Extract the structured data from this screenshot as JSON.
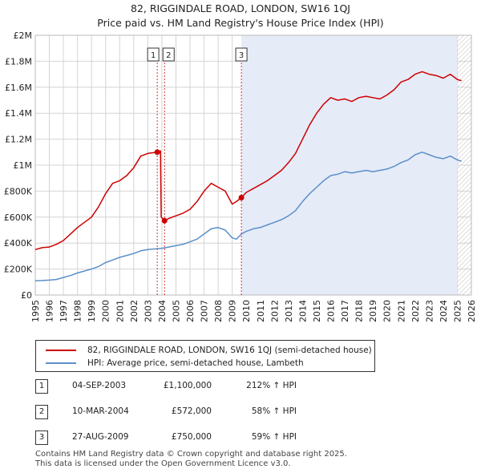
{
  "title_line1": "82, RIGGINDALE ROAD, LONDON, SW16 1QJ",
  "title_line2": "Price paid vs. HM Land Registry's House Price Index (HPI)",
  "colors": {
    "price": "#cc0000",
    "hpi": "#5b8fc9",
    "shade": "#e6ebf8",
    "grid": "#d4d4d4",
    "marker_line": "#cc0000"
  },
  "chart_data": {
    "type": "line",
    "x_range": [
      1995,
      2026
    ],
    "ylim": [
      0,
      2000000
    ],
    "y_ticks": [
      {
        "value": 0,
        "label": "£0"
      },
      {
        "value": 200000,
        "label": "£200K"
      },
      {
        "value": 400000,
        "label": "£400K"
      },
      {
        "value": 600000,
        "label": "£600K"
      },
      {
        "value": 800000,
        "label": "£800K"
      },
      {
        "value": 1000000,
        "label": "£1M"
      },
      {
        "value": 1200000,
        "label": "£1.2M"
      },
      {
        "value": 1400000,
        "label": "£1.4M"
      },
      {
        "value": 1600000,
        "label": "£1.6M"
      },
      {
        "value": 1800000,
        "label": "£1.8M"
      },
      {
        "value": 2000000,
        "label": "£2M"
      }
    ],
    "x_ticks": [
      "1995",
      "1996",
      "1997",
      "1998",
      "1999",
      "2000",
      "2001",
      "2002",
      "2003",
      "2004",
      "2005",
      "2006",
      "2007",
      "2008",
      "2009",
      "2010",
      "2011",
      "2012",
      "2013",
      "2014",
      "2015",
      "2016",
      "2017",
      "2018",
      "2019",
      "2020",
      "2021",
      "2022",
      "2023",
      "2024",
      "2025",
      "2026"
    ],
    "shaded_from": 2009.65,
    "hatched_from": 2025.0,
    "series": [
      {
        "name": "82, RIGGINDALE ROAD, LONDON, SW16 1QJ (semi-detached house)",
        "color": "#cc0000",
        "points": [
          [
            1995,
            350000
          ],
          [
            1995.5,
            365000
          ],
          [
            1996,
            370000
          ],
          [
            1996.5,
            390000
          ],
          [
            1997,
            420000
          ],
          [
            1997.5,
            470000
          ],
          [
            1998,
            520000
          ],
          [
            1998.5,
            560000
          ],
          [
            1999,
            600000
          ],
          [
            1999.5,
            680000
          ],
          [
            2000,
            780000
          ],
          [
            2000.5,
            860000
          ],
          [
            2001,
            880000
          ],
          [
            2001.5,
            920000
          ],
          [
            2002,
            980000
          ],
          [
            2002.5,
            1070000
          ],
          [
            2003,
            1090000
          ],
          [
            2003.67,
            1100000
          ],
          [
            2003.9,
            1110000
          ],
          [
            2003.95,
            600000
          ],
          [
            2004.19,
            572000
          ],
          [
            2004.5,
            590000
          ],
          [
            2005,
            610000
          ],
          [
            2005.5,
            630000
          ],
          [
            2006,
            660000
          ],
          [
            2006.5,
            720000
          ],
          [
            2007,
            800000
          ],
          [
            2007.5,
            860000
          ],
          [
            2008,
            830000
          ],
          [
            2008.5,
            800000
          ],
          [
            2009,
            700000
          ],
          [
            2009.3,
            720000
          ],
          [
            2009.65,
            750000
          ],
          [
            2010,
            790000
          ],
          [
            2010.5,
            820000
          ],
          [
            2011,
            850000
          ],
          [
            2011.5,
            880000
          ],
          [
            2012,
            920000
          ],
          [
            2012.5,
            960000
          ],
          [
            2013,
            1020000
          ],
          [
            2013.5,
            1090000
          ],
          [
            2014,
            1200000
          ],
          [
            2014.5,
            1310000
          ],
          [
            2015,
            1400000
          ],
          [
            2015.5,
            1470000
          ],
          [
            2016,
            1520000
          ],
          [
            2016.5,
            1500000
          ],
          [
            2017,
            1510000
          ],
          [
            2017.5,
            1490000
          ],
          [
            2018,
            1520000
          ],
          [
            2018.5,
            1530000
          ],
          [
            2019,
            1520000
          ],
          [
            2019.5,
            1510000
          ],
          [
            2020,
            1540000
          ],
          [
            2020.5,
            1580000
          ],
          [
            2021,
            1640000
          ],
          [
            2021.5,
            1660000
          ],
          [
            2022,
            1700000
          ],
          [
            2022.5,
            1720000
          ],
          [
            2023,
            1700000
          ],
          [
            2023.5,
            1690000
          ],
          [
            2024,
            1670000
          ],
          [
            2024.5,
            1700000
          ],
          [
            2025,
            1660000
          ],
          [
            2025.3,
            1650000
          ]
        ]
      },
      {
        "name": "HPI: Average price, semi-detached house, Lambeth",
        "color": "#5b8fc9",
        "points": [
          [
            1995,
            110000
          ],
          [
            1995.5,
            112000
          ],
          [
            1996,
            115000
          ],
          [
            1996.5,
            120000
          ],
          [
            1997,
            135000
          ],
          [
            1997.5,
            150000
          ],
          [
            1998,
            170000
          ],
          [
            1998.5,
            185000
          ],
          [
            1999,
            200000
          ],
          [
            1999.5,
            220000
          ],
          [
            2000,
            250000
          ],
          [
            2000.5,
            270000
          ],
          [
            2001,
            290000
          ],
          [
            2001.5,
            305000
          ],
          [
            2002,
            320000
          ],
          [
            2002.5,
            340000
          ],
          [
            2003,
            350000
          ],
          [
            2003.5,
            355000
          ],
          [
            2004,
            360000
          ],
          [
            2004.5,
            370000
          ],
          [
            2005,
            380000
          ],
          [
            2005.5,
            390000
          ],
          [
            2006,
            410000
          ],
          [
            2006.5,
            430000
          ],
          [
            2007,
            470000
          ],
          [
            2007.5,
            510000
          ],
          [
            2008,
            520000
          ],
          [
            2008.5,
            500000
          ],
          [
            2009,
            440000
          ],
          [
            2009.3,
            430000
          ],
          [
            2009.65,
            470000
          ],
          [
            2010,
            490000
          ],
          [
            2010.5,
            510000
          ],
          [
            2011,
            520000
          ],
          [
            2011.5,
            540000
          ],
          [
            2012,
            560000
          ],
          [
            2012.5,
            580000
          ],
          [
            2013,
            610000
          ],
          [
            2013.5,
            650000
          ],
          [
            2014,
            720000
          ],
          [
            2014.5,
            780000
          ],
          [
            2015,
            830000
          ],
          [
            2015.5,
            880000
          ],
          [
            2016,
            920000
          ],
          [
            2016.5,
            930000
          ],
          [
            2017,
            950000
          ],
          [
            2017.5,
            940000
          ],
          [
            2018,
            950000
          ],
          [
            2018.5,
            960000
          ],
          [
            2019,
            950000
          ],
          [
            2019.5,
            960000
          ],
          [
            2020,
            970000
          ],
          [
            2020.5,
            990000
          ],
          [
            2021,
            1020000
          ],
          [
            2021.5,
            1040000
          ],
          [
            2022,
            1080000
          ],
          [
            2022.5,
            1100000
          ],
          [
            2023,
            1080000
          ],
          [
            2023.5,
            1060000
          ],
          [
            2024,
            1050000
          ],
          [
            2024.5,
            1070000
          ],
          [
            2025,
            1040000
          ],
          [
            2025.3,
            1030000
          ]
        ]
      }
    ],
    "sales": [
      {
        "label": "1",
        "x": 2003.67,
        "y": 1100000
      },
      {
        "label": "2",
        "x": 2004.19,
        "y": 572000
      },
      {
        "label": "3",
        "x": 2009.65,
        "y": 750000
      }
    ]
  },
  "legend": {
    "price_label": "82, RIGGINDALE ROAD, LONDON, SW16 1QJ (semi-detached house)",
    "hpi_label": "HPI: Average price, semi-detached house, Lambeth"
  },
  "transactions": [
    {
      "num": "1",
      "date": "04-SEP-2003",
      "price": "£1,100,000",
      "hpi": "212% ↑ HPI"
    },
    {
      "num": "2",
      "date": "10-MAR-2004",
      "price": "£572,000",
      "hpi": "58% ↑ HPI"
    },
    {
      "num": "3",
      "date": "27-AUG-2009",
      "price": "£750,000",
      "hpi": "59% ↑ HPI"
    }
  ],
  "footer_line1": "Contains HM Land Registry data © Crown copyright and database right 2025.",
  "footer_line2": "This data is licensed under the Open Government Licence v3.0."
}
